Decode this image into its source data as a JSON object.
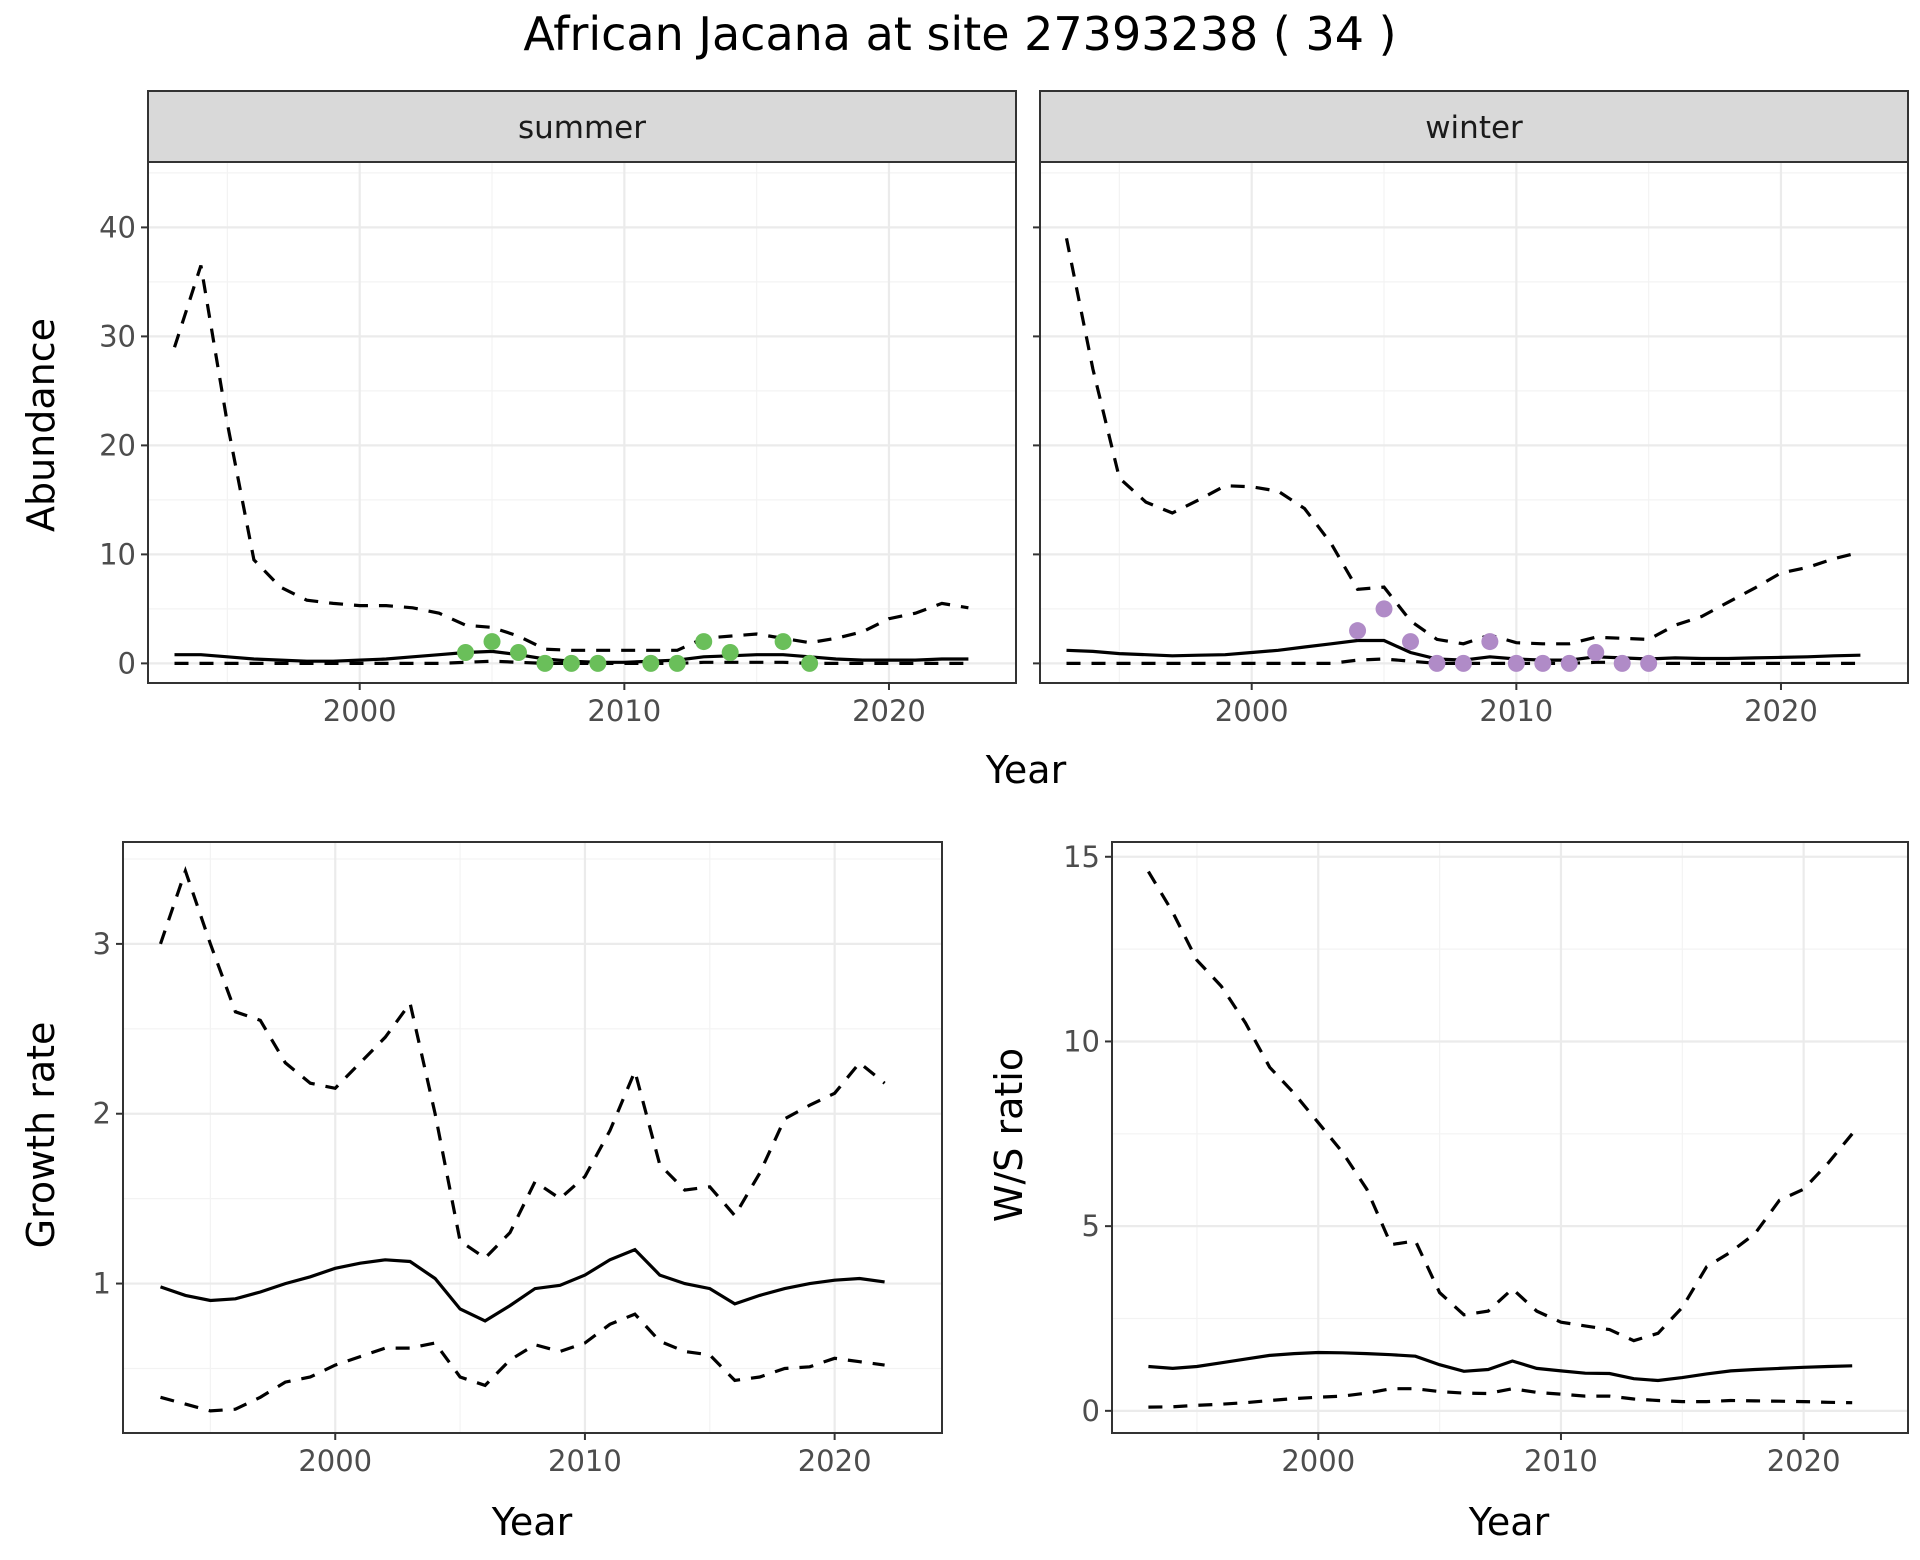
{
  "figure": {
    "title": "African Jacana at site 27393238 ( 34 )"
  },
  "chart_data": [
    {
      "type": "line",
      "facet": "summer",
      "xlabel": "Year",
      "ylabel": "Abundance",
      "xlim": [
        1992,
        2024.8
      ],
      "ylim": [
        -1.8,
        46
      ],
      "x_ticks": [
        2000,
        2010,
        2020
      ],
      "y_ticks": [
        0,
        10,
        20,
        30,
        40
      ],
      "grid": true,
      "point_color": "#6ABF5A",
      "series": [
        {
          "kind": "estimate",
          "x": [
            1993,
            1994,
            1995,
            1996,
            1997,
            1998,
            1999,
            2000,
            2001,
            2002,
            2003,
            2004,
            2005,
            2006,
            2007,
            2008,
            2009,
            2010,
            2011,
            2012,
            2013,
            2014,
            2015,
            2016,
            2017,
            2018,
            2019,
            2020,
            2021,
            2022,
            2023
          ],
          "y": [
            0.8,
            0.8,
            0.6,
            0.4,
            0.3,
            0.2,
            0.2,
            0.3,
            0.4,
            0.6,
            0.8,
            1.0,
            1.1,
            0.8,
            0.4,
            0.2,
            0.1,
            0.1,
            0.2,
            0.3,
            0.6,
            0.7,
            0.8,
            0.8,
            0.6,
            0.4,
            0.3,
            0.3,
            0.3,
            0.4,
            0.4
          ]
        },
        {
          "kind": "upper",
          "x": [
            1993,
            1994,
            1995,
            1996,
            1997,
            1998,
            1999,
            2000,
            2001,
            2002,
            2003,
            2004,
            2005,
            2006,
            2007,
            2008,
            2009,
            2010,
            2011,
            2012,
            2013,
            2014,
            2015,
            2016,
            2017,
            2018,
            2019,
            2020,
            2021,
            2022,
            2023
          ],
          "y": [
            29,
            36.5,
            22,
            9.5,
            7,
            5.8,
            5.5,
            5.3,
            5.3,
            5.1,
            4.6,
            3.5,
            3.3,
            2.5,
            1.3,
            1.2,
            1.2,
            1.2,
            1.2,
            1.2,
            2.3,
            2.5,
            2.7,
            2.3,
            1.9,
            2.3,
            2.9,
            4.1,
            4.6,
            5.5,
            5.1
          ]
        },
        {
          "kind": "lower",
          "x": [
            1993,
            1994,
            1995,
            1996,
            1997,
            1998,
            1999,
            2000,
            2001,
            2002,
            2003,
            2004,
            2005,
            2006,
            2007,
            2008,
            2009,
            2010,
            2011,
            2012,
            2013,
            2014,
            2015,
            2016,
            2017,
            2018,
            2019,
            2020,
            2021,
            2022,
            2023
          ],
          "y": [
            0,
            0,
            0,
            0,
            0,
            0,
            0,
            0,
            0,
            0,
            0,
            0.1,
            0.2,
            0.1,
            0,
            0,
            0,
            0,
            0,
            0,
            0.1,
            0.1,
            0.1,
            0.1,
            0,
            0,
            0,
            0,
            0,
            0,
            0
          ]
        }
      ],
      "points": {
        "x": [
          2004,
          2005,
          2006,
          2007,
          2008,
          2009,
          2011,
          2012,
          2013,
          2014,
          2016,
          2017
        ],
        "y": [
          1,
          2,
          1,
          0,
          0,
          0,
          0,
          0,
          2,
          1,
          2,
          0
        ]
      }
    },
    {
      "type": "line",
      "facet": "winter",
      "xlabel": "Year",
      "ylabel": "Abundance",
      "xlim": [
        1992,
        2024.8
      ],
      "ylim": [
        -1.8,
        46
      ],
      "x_ticks": [
        2000,
        2010,
        2020
      ],
      "y_ticks": [
        0,
        10,
        20,
        30,
        40
      ],
      "grid": true,
      "point_color": "#B08BC7",
      "series": [
        {
          "kind": "estimate",
          "x": [
            1993,
            1994,
            1995,
            1996,
            1997,
            1998,
            1999,
            2000,
            2001,
            2002,
            2003,
            2004,
            2005,
            2006,
            2007,
            2008,
            2009,
            2010,
            2011,
            2012,
            2013,
            2014,
            2015,
            2016,
            2017,
            2018,
            2019,
            2020,
            2021,
            2022,
            2023
          ],
          "y": [
            1.2,
            1.1,
            0.9,
            0.8,
            0.7,
            0.75,
            0.8,
            1.0,
            1.2,
            1.5,
            1.8,
            2.1,
            2.1,
            1.0,
            0.4,
            0.3,
            0.6,
            0.4,
            0.3,
            0.3,
            0.6,
            0.5,
            0.4,
            0.5,
            0.45,
            0.45,
            0.5,
            0.55,
            0.6,
            0.7,
            0.75
          ]
        },
        {
          "kind": "upper",
          "x": [
            1993,
            1994,
            1995,
            1996,
            1997,
            1998,
            1999,
            2000,
            2001,
            2002,
            2003,
            2004,
            2005,
            2006,
            2007,
            2008,
            2009,
            2010,
            2011,
            2012,
            2013,
            2014,
            2015,
            2016,
            2017,
            2018,
            2019,
            2020,
            2021,
            2022,
            2023
          ],
          "y": [
            39,
            27,
            17,
            14.8,
            13.8,
            15,
            16.3,
            16.2,
            15.8,
            14.2,
            11,
            6.8,
            7,
            3.9,
            2.2,
            1.8,
            2.6,
            1.9,
            1.8,
            1.8,
            2.4,
            2.3,
            2.2,
            3.5,
            4.3,
            5.6,
            6.9,
            8.3,
            8.8,
            9.6,
            10.2
          ]
        },
        {
          "kind": "lower",
          "x": [
            1993,
            1994,
            1995,
            1996,
            1997,
            1998,
            1999,
            2000,
            2001,
            2002,
            2003,
            2004,
            2005,
            2006,
            2007,
            2008,
            2009,
            2010,
            2011,
            2012,
            2013,
            2014,
            2015,
            2016,
            2017,
            2018,
            2019,
            2020,
            2021,
            2022,
            2023
          ],
          "y": [
            0,
            0,
            0,
            0,
            0,
            0,
            0,
            0,
            0,
            0,
            0,
            0.3,
            0.4,
            0.2,
            0,
            0,
            0,
            0,
            0,
            0,
            0.1,
            0.1,
            0,
            0,
            0,
            0,
            0,
            0,
            0,
            0,
            0
          ]
        }
      ],
      "points": {
        "x": [
          2004,
          2005,
          2006,
          2007,
          2008,
          2009,
          2010,
          2011,
          2012,
          2013,
          2014,
          2015
        ],
        "y": [
          3,
          5,
          2,
          0,
          0,
          2,
          0,
          0,
          0,
          1,
          0,
          0
        ]
      }
    },
    {
      "type": "line",
      "xlabel": "Year",
      "ylabel": "Growth rate",
      "xlim": [
        1991.5,
        2024.3
      ],
      "ylim": [
        0.12,
        3.6
      ],
      "x_ticks": [
        2000,
        2010,
        2020
      ],
      "y_ticks": [
        1,
        2,
        3
      ],
      "grid": true,
      "series": [
        {
          "kind": "estimate",
          "x": [
            1993,
            1994,
            1995,
            1996,
            1997,
            1998,
            1999,
            2000,
            2001,
            2002,
            2003,
            2004,
            2005,
            2006,
            2007,
            2008,
            2009,
            2010,
            2011,
            2012,
            2013,
            2014,
            2015,
            2016,
            2017,
            2018,
            2019,
            2020,
            2021,
            2022
          ],
          "y": [
            0.98,
            0.93,
            0.9,
            0.91,
            0.95,
            1.0,
            1.04,
            1.09,
            1.12,
            1.14,
            1.13,
            1.03,
            0.85,
            0.78,
            0.87,
            0.97,
            0.99,
            1.05,
            1.14,
            1.2,
            1.05,
            1.0,
            0.97,
            0.88,
            0.93,
            0.97,
            1.0,
            1.02,
            1.03,
            1.01
          ]
        },
        {
          "kind": "upper",
          "x": [
            1993,
            1994,
            1995,
            1996,
            1997,
            1998,
            1999,
            2000,
            2001,
            2002,
            2003,
            2004,
            2005,
            2006,
            2007,
            2008,
            2009,
            2010,
            2011,
            2012,
            2013,
            2014,
            2015,
            2016,
            2017,
            2018,
            2019,
            2020,
            2021,
            2022
          ],
          "y": [
            3.0,
            3.43,
            3.0,
            2.6,
            2.55,
            2.3,
            2.18,
            2.15,
            2.3,
            2.45,
            2.65,
            2.0,
            1.25,
            1.15,
            1.3,
            1.6,
            1.5,
            1.63,
            1.9,
            2.25,
            1.7,
            1.55,
            1.57,
            1.4,
            1.65,
            1.97,
            2.05,
            2.12,
            2.3,
            2.18
          ]
        },
        {
          "kind": "lower",
          "x": [
            1993,
            1994,
            1995,
            1996,
            1997,
            1998,
            1999,
            2000,
            2001,
            2002,
            2003,
            2004,
            2005,
            2006,
            2007,
            2008,
            2009,
            2010,
            2011,
            2012,
            2013,
            2014,
            2015,
            2016,
            2017,
            2018,
            2019,
            2020,
            2021,
            2022
          ],
          "y": [
            0.33,
            0.29,
            0.25,
            0.26,
            0.33,
            0.42,
            0.45,
            0.52,
            0.57,
            0.62,
            0.62,
            0.65,
            0.45,
            0.4,
            0.55,
            0.64,
            0.6,
            0.65,
            0.76,
            0.82,
            0.66,
            0.6,
            0.58,
            0.43,
            0.45,
            0.5,
            0.51,
            0.56,
            0.54,
            0.52
          ]
        }
      ]
    },
    {
      "type": "line",
      "xlabel": "Year",
      "ylabel": "W/S ratio",
      "xlim": [
        1991.5,
        2024.3
      ],
      "ylim": [
        -0.6,
        15.4
      ],
      "x_ticks": [
        2000,
        2010,
        2020
      ],
      "y_ticks": [
        0,
        5,
        10,
        15
      ],
      "grid": true,
      "series": [
        {
          "kind": "estimate",
          "x": [
            1993,
            1994,
            1995,
            1996,
            1997,
            1998,
            1999,
            2000,
            2001,
            2002,
            2003,
            2004,
            2005,
            2006,
            2007,
            2008,
            2009,
            2010,
            2011,
            2012,
            2013,
            2014,
            2015,
            2016,
            2017,
            2018,
            2019,
            2020,
            2021,
            2022
          ],
          "y": [
            1.2,
            1.15,
            1.2,
            1.3,
            1.4,
            1.5,
            1.55,
            1.58,
            1.57,
            1.55,
            1.52,
            1.48,
            1.25,
            1.07,
            1.12,
            1.35,
            1.15,
            1.08,
            1.02,
            1.01,
            0.87,
            0.82,
            0.9,
            1.0,
            1.08,
            1.12,
            1.15,
            1.18,
            1.2,
            1.22
          ]
        },
        {
          "kind": "upper",
          "x": [
            1993,
            1994,
            1995,
            1996,
            1997,
            1998,
            1999,
            2000,
            2001,
            2002,
            2003,
            2004,
            2005,
            2006,
            2007,
            2008,
            2009,
            2010,
            2011,
            2012,
            2013,
            2014,
            2015,
            2016,
            2017,
            2018,
            2019,
            2020,
            2021,
            2022
          ],
          "y": [
            14.6,
            13.5,
            12.2,
            11.5,
            10.5,
            9.3,
            8.6,
            7.8,
            7.0,
            6.0,
            4.5,
            4.6,
            3.2,
            2.6,
            2.7,
            3.3,
            2.7,
            2.4,
            2.3,
            2.2,
            1.9,
            2.1,
            2.8,
            3.9,
            4.3,
            4.8,
            5.7,
            6.0,
            6.7,
            7.5
          ]
        },
        {
          "kind": "lower",
          "x": [
            1993,
            1994,
            1995,
            1996,
            1997,
            1998,
            1999,
            2000,
            2001,
            2002,
            2003,
            2004,
            2005,
            2006,
            2007,
            2008,
            2009,
            2010,
            2011,
            2012,
            2013,
            2014,
            2015,
            2016,
            2017,
            2018,
            2019,
            2020,
            2021,
            2022
          ],
          "y": [
            0.1,
            0.11,
            0.15,
            0.18,
            0.22,
            0.28,
            0.33,
            0.37,
            0.4,
            0.48,
            0.6,
            0.6,
            0.52,
            0.48,
            0.47,
            0.6,
            0.5,
            0.45,
            0.4,
            0.4,
            0.32,
            0.28,
            0.25,
            0.25,
            0.28,
            0.27,
            0.26,
            0.25,
            0.23,
            0.22
          ]
        }
      ]
    }
  ]
}
